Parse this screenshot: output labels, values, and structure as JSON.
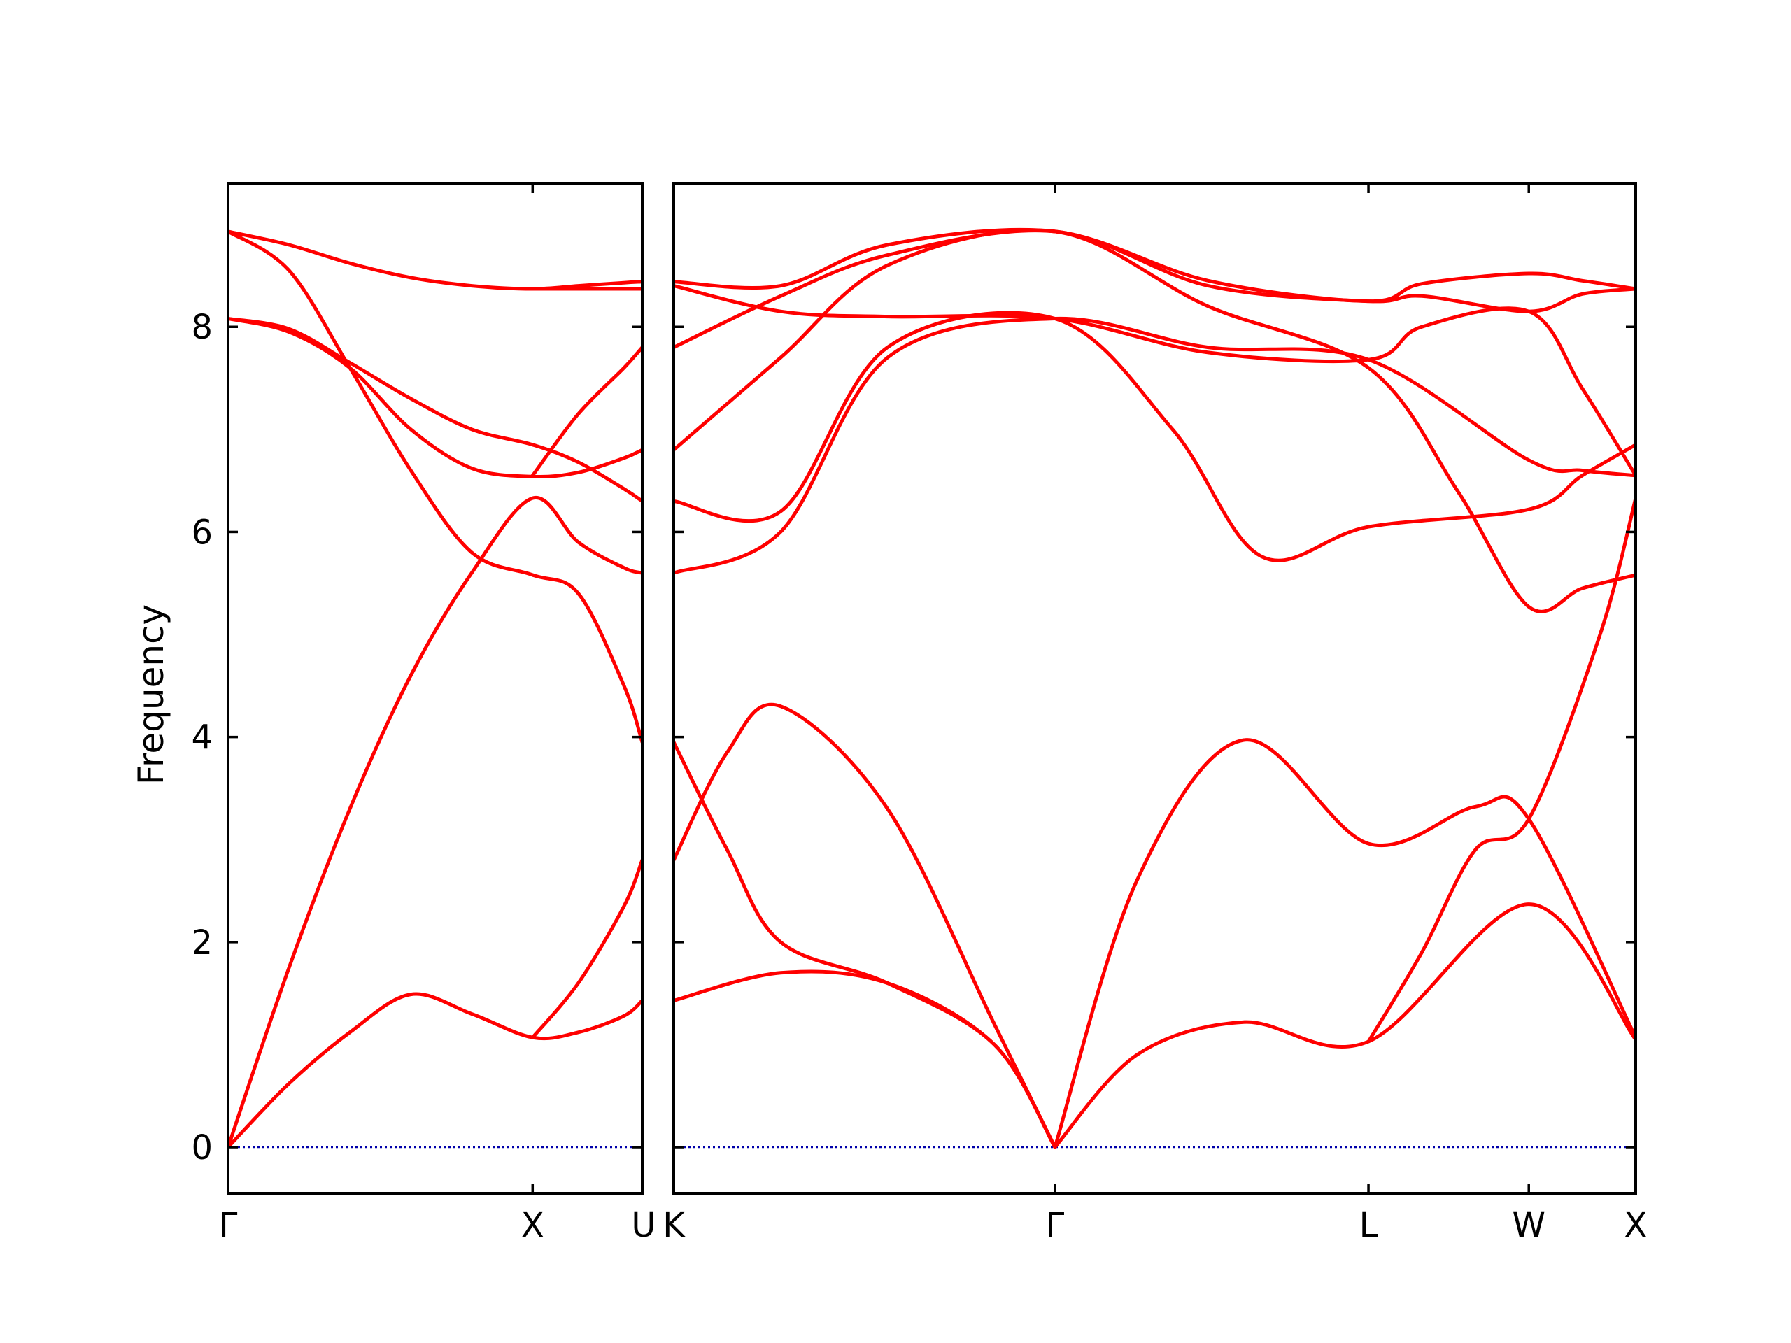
{
  "chart_data": {
    "type": "line",
    "ylabel": "Frequency",
    "ylim": [
      -0.45,
      9.4
    ],
    "yticks": [
      0,
      2,
      4,
      6,
      8
    ],
    "grid": false,
    "legend": "none",
    "line_color": "#ff0000",
    "zero_line_color": "#0000aa",
    "panels": [
      {
        "path": [
          "Γ",
          "X",
          "U"
        ],
        "xticks": [
          "Γ",
          "X",
          "U"
        ],
        "series": [
          {
            "points": [
              [
                "Γ",
                0
              ],
              [
                0.2,
                0.62
              ],
              [
                0.4,
                1.12
              ],
              [
                0.6,
                1.49
              ],
              [
                0.8,
                1.3
              ],
              [
                1.0,
                1.07
              ],
              [
                1.15,
                1.12
              ],
              [
                1.3,
                1.28
              ],
              [
                1.36,
                1.43
              ]
            ]
          },
          {
            "points": [
              [
                "Γ",
                0
              ],
              [
                0.2,
                1.75
              ],
              [
                0.4,
                3.3
              ],
              [
                0.6,
                4.6
              ],
              [
                0.8,
                5.6
              ],
              [
                1.0,
                6.33
              ],
              [
                1.15,
                5.9
              ],
              [
                1.3,
                5.65
              ],
              [
                1.36,
                5.6
              ]
            ]
          },
          {
            "points": [
              [
                "Γ",
                8.08
              ],
              [
                0.2,
                7.95
              ],
              [
                0.4,
                7.6
              ],
              [
                0.6,
                7.0
              ],
              [
                0.8,
                6.62
              ],
              [
                1.0,
                6.54
              ],
              [
                1.15,
                6.58
              ],
              [
                1.3,
                6.72
              ],
              [
                1.36,
                6.8
              ]
            ]
          },
          {
            "points": [
              [
                "Γ",
                8.08
              ],
              [
                0.2,
                7.98
              ],
              [
                0.4,
                7.65
              ],
              [
                0.6,
                7.3
              ],
              [
                0.8,
                7.0
              ],
              [
                1.0,
                6.85
              ],
              [
                1.15,
                6.68
              ],
              [
                1.3,
                6.42
              ],
              [
                1.36,
                6.3
              ]
            ]
          },
          {
            "points": [
              [
                "Γ",
                8.93
              ],
              [
                0.2,
                8.55
              ],
              [
                0.4,
                7.6
              ],
              [
                0.6,
                6.6
              ],
              [
                0.8,
                5.8
              ],
              [
                1.0,
                5.58
              ],
              [
                1.15,
                5.4
              ],
              [
                1.3,
                4.5
              ],
              [
                1.36,
                3.95
              ]
            ]
          },
          {
            "points": [
              [
                "Γ",
                8.93
              ],
              [
                0.2,
                8.8
              ],
              [
                0.4,
                8.62
              ],
              [
                0.6,
                8.48
              ],
              [
                0.8,
                8.4
              ],
              [
                1.0,
                8.37
              ],
              [
                1.15,
                8.4
              ],
              [
                1.3,
                8.43
              ],
              [
                1.36,
                8.44
              ]
            ]
          },
          {
            "points": [
              [
                1.0,
                1.07
              ],
              [
                1.15,
                1.6
              ],
              [
                1.3,
                2.35
              ],
              [
                1.36,
                2.8
              ]
            ]
          },
          {
            "points": [
              [
                1.0,
                6.55
              ],
              [
                1.15,
                7.15
              ],
              [
                1.3,
                7.6
              ],
              [
                1.36,
                7.8
              ]
            ]
          },
          {
            "points": [
              [
                1.0,
                8.37
              ],
              [
                1.36,
                8.37
              ]
            ]
          }
        ]
      },
      {
        "path": [
          "K",
          "Γ",
          "L",
          "W",
          "X"
        ],
        "xticks": [
          "K",
          "Γ",
          "L",
          "W",
          "X"
        ],
        "series": [
          {
            "points": [
              [
                "K",
                1.43
              ],
              [
                0.3,
                1.7
              ],
              [
                0.6,
                1.6
              ],
              [
                0.9,
                1.0
              ],
              [
                1.07,
                0
              ]
            ]
          },
          {
            "points": [
              [
                "K",
                3.95
              ],
              [
                0.15,
                2.9
              ],
              [
                0.3,
                2.0
              ],
              [
                0.6,
                1.6
              ],
              [
                0.9,
                1.0
              ],
              [
                1.07,
                0
              ]
            ]
          },
          {
            "points": [
              [
                "K",
                2.8
              ],
              [
                0.15,
                3.85
              ],
              [
                0.3,
                4.3
              ],
              [
                0.6,
                3.3
              ],
              [
                0.9,
                1.2
              ],
              [
                1.07,
                0
              ]
            ]
          },
          {
            "points": [
              [
                1.07,
                0
              ],
              [
                1.3,
                0.9
              ],
              [
                1.6,
                1.22
              ],
              [
                1.95,
                1.03
              ],
              [
                2.4,
                2.37
              ],
              [
                2.7,
                1.05
              ]
            ]
          },
          {
            "points": [
              [
                1.07,
                0
              ],
              [
                1.3,
                2.6
              ],
              [
                1.6,
                3.97
              ],
              [
                1.95,
                2.96
              ],
              [
                2.25,
                3.32
              ],
              [
                2.4,
                3.2
              ],
              [
                2.7,
                1.07
              ]
            ]
          },
          {
            "points": [
              [
                1.95,
                1.03
              ],
              [
                2.1,
                1.9
              ],
              [
                2.25,
                2.9
              ],
              [
                2.4,
                3.2
              ],
              [
                2.6,
                5.0
              ],
              [
                2.7,
                6.33
              ]
            ]
          },
          {
            "points": [
              [
                "K",
                6.3
              ],
              [
                0.3,
                6.2
              ],
              [
                0.6,
                7.8
              ],
              [
                1.07,
                8.08
              ],
              [
                1.4,
                7.0
              ],
              [
                1.65,
                5.76
              ],
              [
                1.95,
                6.05
              ],
              [
                2.4,
                6.22
              ],
              [
                2.55,
                6.55
              ],
              [
                2.7,
                6.85
              ]
            ]
          },
          {
            "points": [
              [
                "K",
                5.6
              ],
              [
                0.3,
                6.0
              ],
              [
                0.6,
                7.7
              ],
              [
                1.07,
                8.08
              ],
              [
                1.5,
                7.8
              ],
              [
                1.95,
                7.68
              ],
              [
                2.4,
                6.7
              ],
              [
                2.55,
                6.6
              ],
              [
                2.7,
                6.55
              ]
            ]
          },
          {
            "points": [
              [
                "K",
                6.8
              ],
              [
                0.3,
                7.7
              ],
              [
                0.6,
                8.6
              ],
              [
                1.07,
                8.93
              ],
              [
                1.5,
                8.2
              ],
              [
                1.95,
                7.6
              ],
              [
                2.2,
                6.4
              ],
              [
                2.4,
                5.27
              ],
              [
                2.55,
                5.45
              ],
              [
                2.7,
                5.58
              ]
            ]
          },
          {
            "points": [
              [
                "K",
                8.4
              ],
              [
                0.3,
                8.15
              ],
              [
                0.6,
                8.1
              ],
              [
                1.07,
                8.08
              ],
              [
                1.5,
                7.75
              ],
              [
                1.95,
                7.68
              ],
              [
                2.1,
                8.0
              ],
              [
                2.4,
                8.15
              ],
              [
                2.55,
                7.4
              ],
              [
                2.7,
                6.55
              ]
            ]
          },
          {
            "points": [
              [
                "K",
                7.8
              ],
              [
                0.3,
                8.3
              ],
              [
                0.6,
                8.7
              ],
              [
                1.07,
                8.93
              ],
              [
                1.5,
                8.4
              ],
              [
                1.95,
                8.25
              ],
              [
                2.1,
                8.3
              ],
              [
                2.4,
                8.15
              ],
              [
                2.55,
                8.32
              ],
              [
                2.7,
                8.37
              ]
            ]
          },
          {
            "points": [
              [
                "K",
                8.44
              ],
              [
                0.3,
                8.4
              ],
              [
                0.6,
                8.8
              ],
              [
                1.07,
                8.93
              ],
              [
                1.5,
                8.45
              ],
              [
                1.95,
                8.25
              ],
              [
                2.1,
                8.42
              ],
              [
                2.4,
                8.52
              ],
              [
                2.55,
                8.45
              ],
              [
                2.7,
                8.37
              ]
            ]
          }
        ]
      }
    ]
  }
}
